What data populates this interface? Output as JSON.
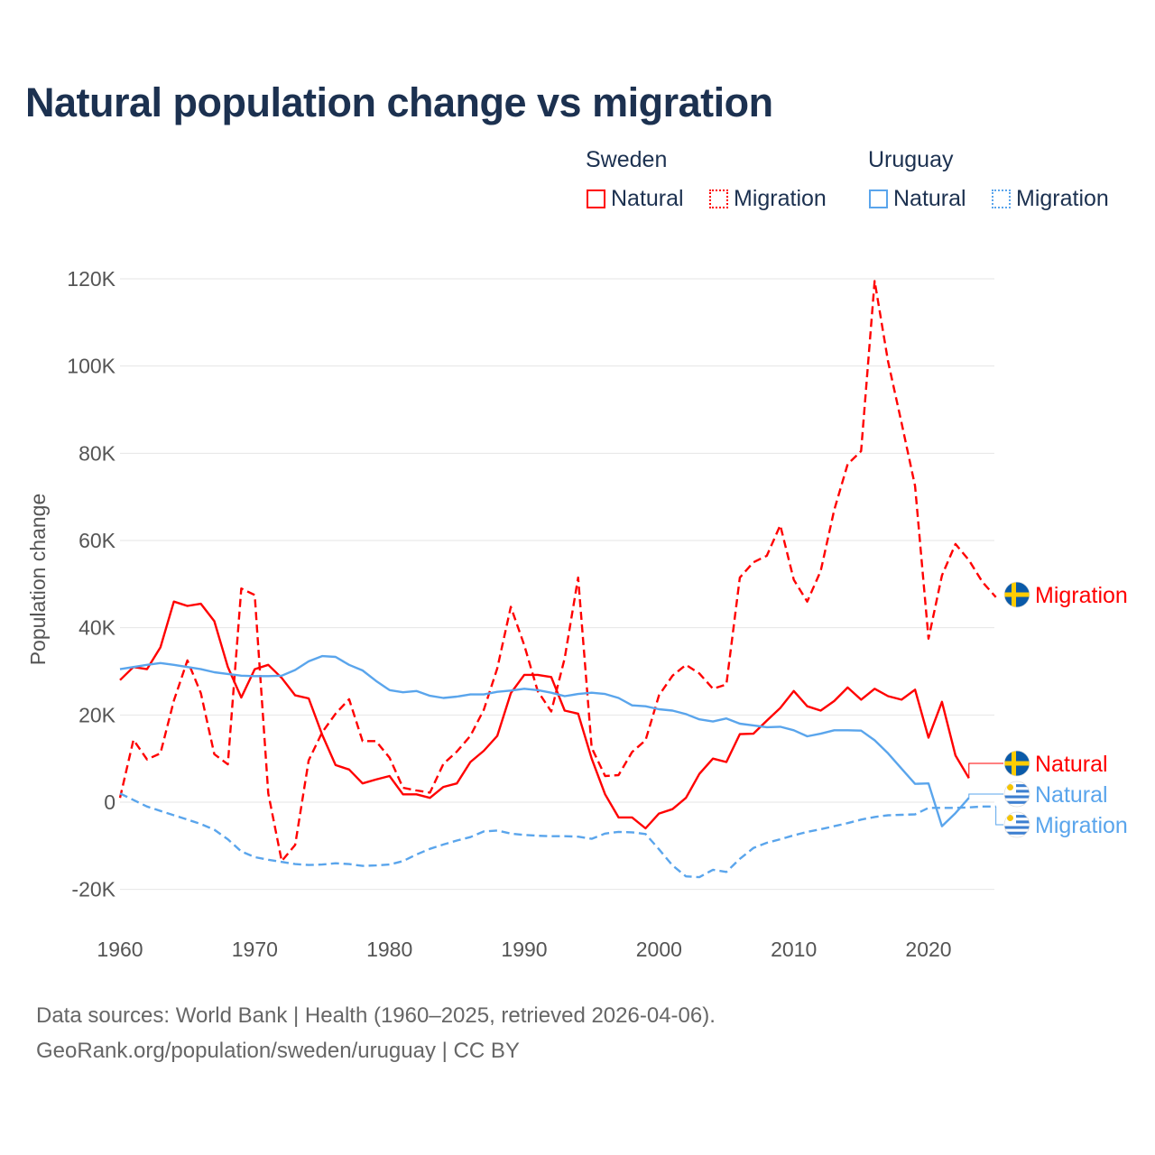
{
  "title": "Natural population change vs migration",
  "legend": {
    "groups": [
      {
        "name": "Sweden",
        "items": [
          "Natural",
          "Migration"
        ],
        "color": "#ff0000"
      },
      {
        "name": "Uruguay",
        "items": [
          "Natural",
          "Migration"
        ],
        "color": "#5aa5ec"
      }
    ]
  },
  "end_labels": [
    {
      "country": "Sweden",
      "label": "Migration",
      "flag": "sweden-flag"
    },
    {
      "country": "Sweden",
      "label": "Natural",
      "flag": "sweden-flag"
    },
    {
      "country": "Uruguay",
      "label": "Natural",
      "flag": "uruguay-flag"
    },
    {
      "country": "Uruguay",
      "label": "Migration",
      "flag": "uruguay-flag"
    }
  ],
  "footer": {
    "line1": "Data sources: World Bank | Health (1960–2025, retrieved 2026-04-06).",
    "line2": "GeoRank.org/population/sweden/uruguay | CC BY"
  },
  "chart_data": {
    "type": "line",
    "title": "Natural population change vs migration",
    "xlabel": "",
    "ylabel": "Population change",
    "xlim": [
      1960,
      2025
    ],
    "ylim": [
      -20000,
      120000
    ],
    "x_ticks": [
      1960,
      1970,
      1980,
      1990,
      2000,
      2010,
      2020
    ],
    "x_tick_labels": [
      "1960",
      "1970",
      "1980",
      "1990",
      "2000",
      "2010",
      "2020"
    ],
    "y_ticks": [
      -20000,
      0,
      20000,
      40000,
      60000,
      80000,
      100000,
      120000
    ],
    "y_tick_labels": [
      "-20K",
      "0",
      "20K",
      "40K",
      "60K",
      "80K",
      "100K",
      "120K"
    ],
    "grid": true,
    "legend_position": "top-right",
    "series": [
      {
        "name": "Sweden Natural",
        "color": "#ff0000",
        "dash": "solid",
        "start_year": 1960,
        "values": [
          28000,
          31000,
          30500,
          35500,
          46000,
          45000,
          45500,
          41500,
          31000,
          24000,
          30500,
          31500,
          28500,
          24500,
          23800,
          15500,
          8500,
          7500,
          4300,
          5200,
          6000,
          1800,
          1800,
          1000,
          3500,
          4300,
          9200,
          11800,
          15200,
          25000,
          29200,
          29200,
          28700,
          21000,
          20300,
          10000,
          1800,
          -3500,
          -3500,
          -6000,
          -2600,
          -1600,
          1000,
          6500,
          10000,
          9200,
          15600,
          15700,
          18700,
          21600,
          25500,
          22000,
          21000,
          23200,
          26300,
          23500,
          26000,
          24300,
          23500,
          25800,
          14800,
          23000,
          10700,
          5500
        ]
      },
      {
        "name": "Sweden Migration",
        "color": "#ff0000",
        "dash": "dashed",
        "start_year": 1960,
        "values": [
          1000,
          14300,
          9800,
          11200,
          23300,
          32500,
          25000,
          11000,
          8700,
          49000,
          47500,
          2000,
          -13500,
          -9800,
          9600,
          16000,
          20300,
          23600,
          14000,
          14000,
          10200,
          3300,
          2700,
          2200,
          8800,
          11600,
          15200,
          21200,
          30700,
          44800,
          36000,
          25500,
          20800,
          33000,
          51500,
          12500,
          6000,
          6200,
          11500,
          14200,
          24500,
          29000,
          31500,
          29500,
          26000,
          27000,
          51500,
          55000,
          56500,
          63500,
          51000,
          46000,
          53000,
          67000,
          77500,
          80500,
          119500,
          101000,
          87000,
          72500,
          37500,
          52000,
          59200,
          55500,
          50500,
          47000
        ]
      },
      {
        "name": "Uruguay Natural",
        "color": "#5aa5ec",
        "dash": "solid",
        "start_year": 1960,
        "values": [
          30500,
          31000,
          31500,
          31900,
          31500,
          31000,
          30500,
          29800,
          29400,
          29000,
          28900,
          28900,
          29000,
          30300,
          32300,
          33500,
          33300,
          31500,
          30200,
          27800,
          25700,
          25200,
          25500,
          24400,
          23900,
          24200,
          24700,
          24700,
          25300,
          25600,
          26000,
          25700,
          25100,
          24300,
          24800,
          25100,
          24800,
          23900,
          22200,
          22000,
          21300,
          21000,
          20200,
          19000,
          18500,
          19200,
          18000,
          17600,
          17200,
          17300,
          16500,
          15100,
          15700,
          16500,
          16500,
          16400,
          14200,
          11200,
          7700,
          4200,
          4300,
          -5500,
          -2500,
          1000
        ]
      },
      {
        "name": "Uruguay Migration",
        "color": "#5aa5ec",
        "dash": "dashed",
        "start_year": 1960,
        "values": [
          2000,
          500,
          -1000,
          -2000,
          -3000,
          -4000,
          -5000,
          -6300,
          -8500,
          -11300,
          -12600,
          -13200,
          -13700,
          -14200,
          -14400,
          -14300,
          -14000,
          -14200,
          -14600,
          -14500,
          -14300,
          -13500,
          -12000,
          -10700,
          -9700,
          -8800,
          -8000,
          -6700,
          -6500,
          -7200,
          -7500,
          -7700,
          -7800,
          -7800,
          -7900,
          -8400,
          -7200,
          -6800,
          -6900,
          -7300,
          -10800,
          -14500,
          -17000,
          -17200,
          -15500,
          -16000,
          -13000,
          -10500,
          -9300,
          -8500,
          -7600,
          -6800,
          -6200,
          -5500,
          -4800,
          -4000,
          -3400,
          -3000,
          -2900,
          -2800,
          -1300,
          -1300,
          -1300,
          -1200,
          -1000,
          -1000
        ]
      }
    ]
  }
}
